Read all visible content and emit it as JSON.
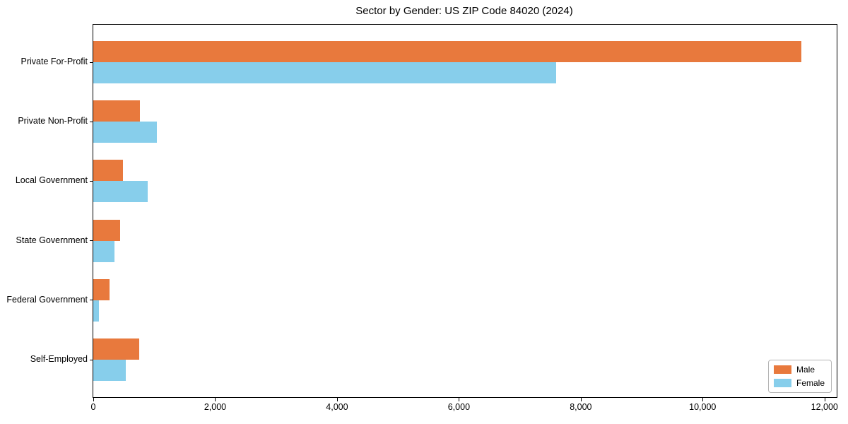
{
  "chart_data": {
    "type": "bar",
    "orientation": "horizontal",
    "title": "Sector by Gender: US ZIP Code 84020 (2024)",
    "categories": [
      "Private For-Profit",
      "Private Non-Profit",
      "Local Government",
      "State Government",
      "Federal Government",
      "Self-Employed"
    ],
    "series": [
      {
        "name": "Male",
        "color": "#E8793D",
        "values": [
          11620,
          760,
          490,
          440,
          270,
          755
        ]
      },
      {
        "name": "Female",
        "color": "#87CEEB",
        "values": [
          7600,
          1040,
          890,
          350,
          95,
          535
        ]
      }
    ],
    "xlabel": "",
    "ylabel": "",
    "xlim": [
      0,
      12200
    ],
    "xticks": [
      0,
      2000,
      4000,
      6000,
      8000,
      10000,
      12000
    ],
    "xtick_labels": [
      "0",
      "2,000",
      "4,000",
      "6,000",
      "8,000",
      "10,000",
      "12,000"
    ],
    "grid": false,
    "legend": {
      "position": "lower-right",
      "entries": [
        "Male",
        "Female"
      ]
    }
  }
}
